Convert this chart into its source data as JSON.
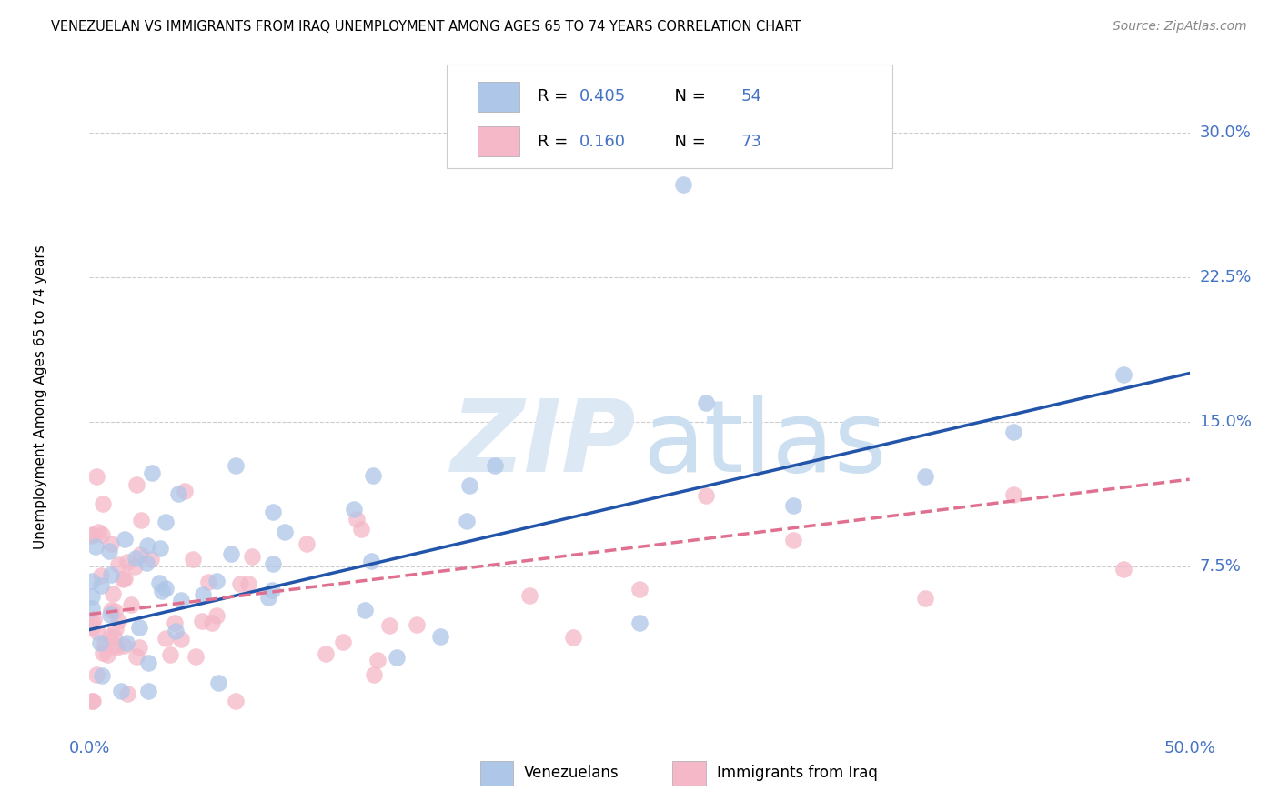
{
  "title": "VENEZUELAN VS IMMIGRANTS FROM IRAQ UNEMPLOYMENT AMONG AGES 65 TO 74 YEARS CORRELATION CHART",
  "source": "Source: ZipAtlas.com",
  "ylabel": "Unemployment Among Ages 65 to 74 years",
  "xlim": [
    0,
    0.5
  ],
  "ylim": [
    -0.01,
    0.335
  ],
  "yticks": [
    0.075,
    0.15,
    0.225,
    0.3
  ],
  "ytick_labels": [
    "7.5%",
    "15.0%",
    "22.5%",
    "30.0%"
  ],
  "xtick_labels": [
    "0.0%",
    "50.0%"
  ],
  "grid_color": "#cccccc",
  "background_color": "#ffffff",
  "venezuelan_color": "#aec6e8",
  "iraq_color": "#f4b8c8",
  "venezuelan_line_color": "#2255aa",
  "iraq_line_color": "#e07090",
  "venezuelan_R": 0.405,
  "venezuelan_N": 54,
  "iraq_R": 0.16,
  "iraq_N": 73,
  "legend_color": "#4472c4",
  "watermark_zip_color": "#dce9f5",
  "watermark_atlas_color": "#ccdff0",
  "tick_label_color": "#4472c4",
  "title_fontsize": 10.5,
  "source_fontsize": 10,
  "axis_label_fontsize": 11,
  "tick_fontsize": 13,
  "legend_fontsize": 13,
  "watermark_fontsize": 80
}
